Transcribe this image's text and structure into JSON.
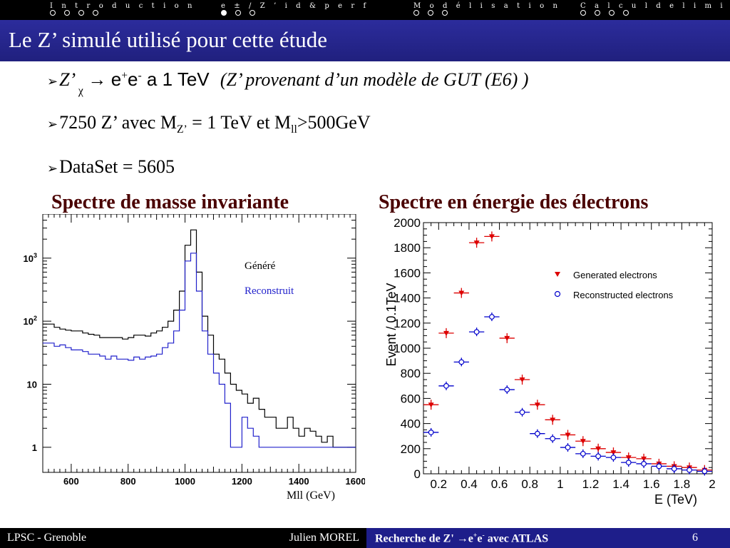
{
  "nav": [
    {
      "title": "I n t r o d u c t i o n",
      "dots": 4,
      "active": -1
    },
    {
      "title": "e ± / Z ’   i d   &   p e r f",
      "dots": 3,
      "active": 0
    },
    {
      "title": "M o d é l i s a t i o n",
      "dots": 3,
      "active": -1
    },
    {
      "title": "C a l c u l   d e   l i m i t e s",
      "dots": 4,
      "active": -1
    }
  ],
  "title": "Le Z’ simulé utilisé pour cette étude",
  "bullets": {
    "b1": {
      "z": "Z’ ",
      "chi": "χ",
      "arrow": " → ",
      "e1": "e",
      "e1sup": "+",
      "e2": "e",
      "e2sup": "-",
      "rest": " a 1 TeV ",
      "note": "(Z’ provenant d’un modèle de GUT (E6) )"
    },
    "b2": {
      "a": "7250 Z’ avec M",
      "a_sub": "Z’",
      "b": " = 1 TeV et M",
      "b_sub": "ll",
      "c": ">500GeV"
    },
    "b3": {
      "text": "DataSet = 5605"
    }
  },
  "captions": {
    "left": "Spectre de masse invariante",
    "right": "Spectre en énergie des électrons"
  },
  "left_plot": {
    "legend_generated": "Généré",
    "legend_reconstructed": "Reconstruit",
    "xlabel": "Mll (GeV)",
    "xticks": [
      "600",
      "800",
      "1000",
      "1200",
      "1400",
      "1600"
    ],
    "colors": {
      "generated": "#000000",
      "reconstructed": "#2222cc"
    }
  },
  "right_plot": {
    "ylabel": "Event / 0.1TeV",
    "xlabel": "E (TeV)",
    "xticks": [
      "0.2",
      "0.4",
      "0.6",
      "0.8",
      "1",
      "1.2",
      "1.4",
      "1.6",
      "1.8",
      "2"
    ],
    "yticks": [
      "0",
      "200",
      "400",
      "600",
      "800",
      "1000",
      "1200",
      "1400",
      "1600",
      "1800",
      "2000"
    ],
    "legend_generated": "Generated electrons",
    "legend_reconstructed": "Reconstructed electrons",
    "colors": {
      "generated": "#dd0000",
      "reconstructed": "#0000cc"
    }
  },
  "chart_data": [
    {
      "type": "line",
      "xlabel": "Mll (GeV)",
      "ylabel": "",
      "xlim": [
        500,
        1600
      ],
      "yscale": "log",
      "ylim": [
        0.4,
        5000
      ],
      "yticks": [
        1,
        10,
        100,
        1000
      ],
      "ytick_labels": [
        "1",
        "10",
        "10^2",
        "10^3"
      ],
      "x": [
        500,
        520,
        540,
        560,
        580,
        600,
        620,
        640,
        660,
        680,
        700,
        720,
        740,
        760,
        780,
        800,
        820,
        840,
        860,
        880,
        900,
        920,
        940,
        960,
        980,
        1000,
        1020,
        1040,
        1060,
        1080,
        1100,
        1120,
        1140,
        1160,
        1180,
        1200,
        1220,
        1240,
        1260,
        1280,
        1300,
        1320,
        1340,
        1360,
        1380,
        1400,
        1420,
        1440,
        1460,
        1480,
        1500,
        1520,
        1540,
        1560,
        1580,
        1600
      ],
      "series": [
        {
          "name": "Généré",
          "values": [
            90,
            90,
            80,
            75,
            72,
            70,
            70,
            65,
            62,
            60,
            55,
            55,
            55,
            55,
            52,
            55,
            60,
            60,
            58,
            65,
            70,
            80,
            100,
            150,
            300,
            1600,
            2800,
            600,
            120,
            60,
            30,
            25,
            15,
            10,
            8,
            7,
            5,
            6,
            4,
            3,
            3,
            2,
            2,
            3,
            2,
            1.5,
            2,
            1.8,
            1.5,
            1.2,
            1.5,
            1,
            1,
            1,
            1,
            1
          ]
        },
        {
          "name": "Reconstruit",
          "values": [
            45,
            45,
            40,
            42,
            38,
            35,
            35,
            33,
            30,
            30,
            28,
            25,
            28,
            25,
            25,
            24,
            27,
            25,
            27,
            28,
            30,
            38,
            45,
            70,
            150,
            900,
            1200,
            300,
            70,
            30,
            15,
            10,
            5,
            1,
            1,
            3,
            2,
            1.5,
            1,
            1,
            1,
            1,
            1,
            1,
            1,
            1,
            1,
            1,
            1,
            1,
            1,
            1,
            1,
            1,
            1,
            1
          ]
        }
      ]
    },
    {
      "type": "scatter",
      "xlabel": "E (TeV)",
      "ylabel": "Event / 0.1TeV",
      "xlim": [
        0.1,
        2.0
      ],
      "ylim": [
        0,
        2000
      ],
      "series": [
        {
          "name": "Generated electrons",
          "x": [
            0.15,
            0.25,
            0.35,
            0.45,
            0.55,
            0.65,
            0.75,
            0.85,
            0.95,
            1.05,
            1.15,
            1.25,
            1.35,
            1.45,
            1.55,
            1.65,
            1.75,
            1.85,
            1.95
          ],
          "y": [
            550,
            1120,
            1440,
            1840,
            1890,
            1080,
            750,
            550,
            430,
            310,
            260,
            200,
            170,
            130,
            120,
            80,
            60,
            50,
            30
          ]
        },
        {
          "name": "Reconstructed electrons",
          "x": [
            0.15,
            0.25,
            0.35,
            0.45,
            0.55,
            0.65,
            0.75,
            0.85,
            0.95,
            1.05,
            1.15,
            1.25,
            1.35,
            1.45,
            1.55,
            1.65,
            1.75,
            1.85,
            1.95
          ],
          "y": [
            330,
            700,
            890,
            1130,
            1250,
            670,
            490,
            320,
            280,
            210,
            160,
            140,
            130,
            90,
            80,
            60,
            40,
            30,
            20
          ]
        }
      ]
    }
  ]
}
